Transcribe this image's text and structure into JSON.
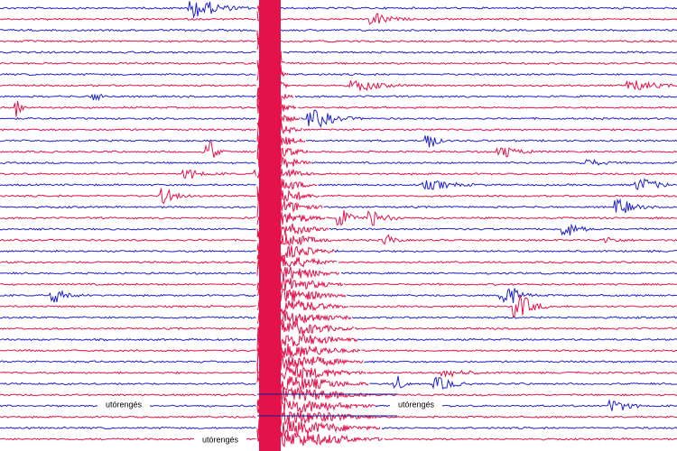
{
  "annotations": [
    {
      "label": "utórengés"
    },
    {
      "label": "utórengés"
    },
    {
      "label": "utórengés"
    }
  ]
}
